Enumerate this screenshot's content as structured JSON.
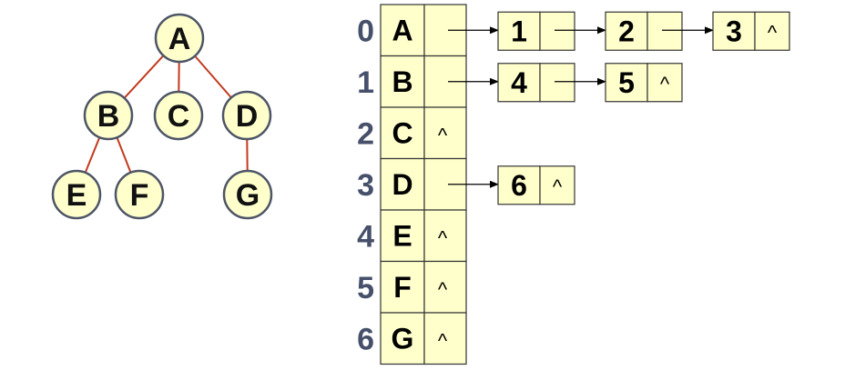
{
  "tree": {
    "nodes": [
      {
        "id": "A",
        "label": "A"
      },
      {
        "id": "B",
        "label": "B"
      },
      {
        "id": "C",
        "label": "C"
      },
      {
        "id": "D",
        "label": "D"
      },
      {
        "id": "E",
        "label": "E"
      },
      {
        "id": "F",
        "label": "F"
      },
      {
        "id": "G",
        "label": "G"
      }
    ],
    "edges": [
      [
        "A",
        "B"
      ],
      [
        "A",
        "C"
      ],
      [
        "A",
        "D"
      ],
      [
        "B",
        "E"
      ],
      [
        "B",
        "F"
      ],
      [
        "D",
        "G"
      ]
    ]
  },
  "table": {
    "rows": [
      {
        "index": "0",
        "data": "A",
        "children": [
          "1",
          "2",
          "3"
        ]
      },
      {
        "index": "1",
        "data": "B",
        "children": [
          "4",
          "5"
        ]
      },
      {
        "index": "2",
        "data": "C",
        "children": []
      },
      {
        "index": "3",
        "data": "D",
        "children": [
          "6"
        ]
      },
      {
        "index": "4",
        "data": "E",
        "children": []
      },
      {
        "index": "5",
        "data": "F",
        "children": []
      },
      {
        "index": "6",
        "data": "G",
        "children": []
      }
    ],
    "null_symbol": "^"
  },
  "colors": {
    "node_fill": "#ffffcc",
    "node_stroke": "#4d5566",
    "edge": "#c23a1e",
    "index_text": "#46506a"
  }
}
